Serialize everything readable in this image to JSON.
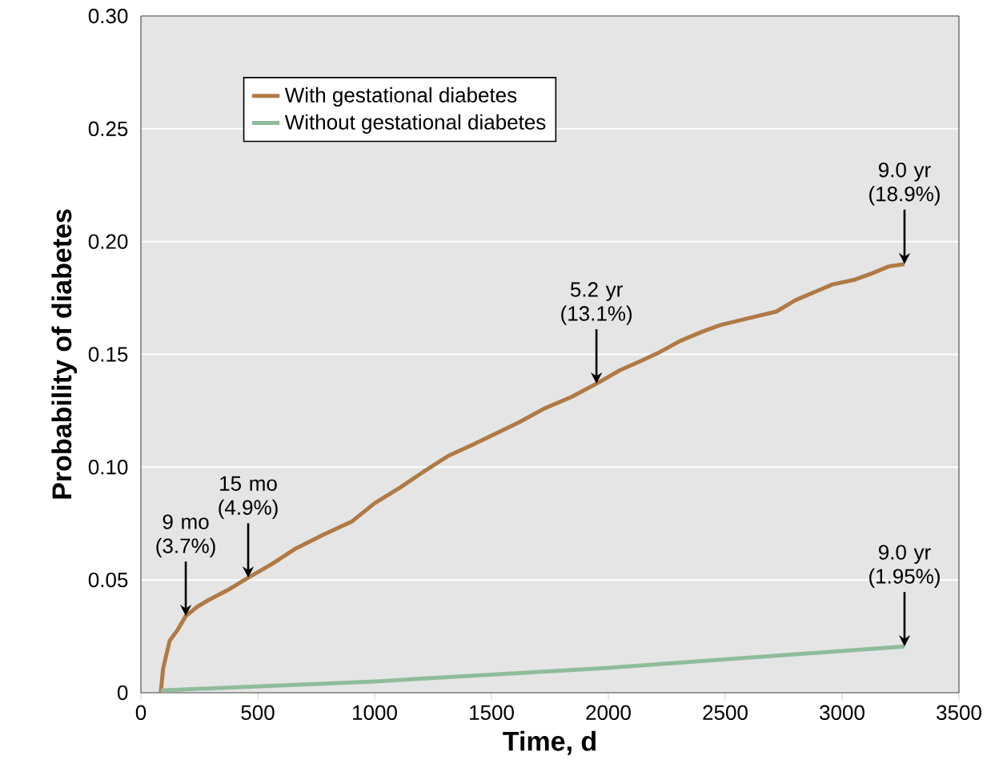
{
  "chart_data": {
    "type": "line",
    "xlabel": "Time, d",
    "ylabel": "Probability of diabetes",
    "xlim": [
      0,
      3500
    ],
    "ylim": [
      0,
      0.3
    ],
    "xticks": [
      0,
      500,
      1000,
      1500,
      2000,
      2500,
      3000,
      3500
    ],
    "yticks": [
      0,
      {
        "value": 0.05,
        "label": "0.05"
      },
      {
        "value": 0.1,
        "label": "0.10"
      },
      {
        "value": 0.15,
        "label": "0.15"
      },
      {
        "value": 0.2,
        "label": "0.20"
      },
      {
        "value": 0.25,
        "label": "0.25"
      },
      {
        "value": 0.3,
        "label": "0.30"
      }
    ],
    "grid": "y",
    "legend": "top left",
    "series": [
      {
        "name": "With gestational diabetes",
        "color": "#b07a45",
        "x": [
          85,
          95,
          123,
          158,
          192,
          240,
          288,
          380,
          459,
          560,
          664,
          780,
          904,
          1000,
          1110,
          1210,
          1315,
          1420,
          1521,
          1620,
          1726,
          1840,
          1949,
          2050,
          2137,
          2220,
          2308,
          2400,
          2479,
          2600,
          2719,
          2800,
          2959,
          3050,
          3130,
          3200,
          3267
        ],
        "values": [
          0,
          0.0107,
          0.023,
          0.028,
          0.034,
          0.038,
          0.041,
          0.046,
          0.051,
          0.057,
          0.064,
          0.07,
          0.076,
          0.084,
          0.091,
          0.098,
          0.105,
          0.11,
          0.115,
          0.12,
          0.126,
          0.131,
          0.137,
          0.143,
          0.147,
          0.151,
          0.156,
          0.16,
          0.163,
          0.166,
          0.169,
          0.174,
          0.181,
          0.183,
          0.186,
          0.189,
          0.19
        ]
      },
      {
        "name": "Without gestational diabetes",
        "color": "#8fbc9a",
        "x": [
          85,
          1000,
          2000,
          3267
        ],
        "values": [
          0.001,
          0.005,
          0.011,
          0.0205
        ]
      }
    ],
    "annotations": [
      {
        "text": "9 mo (3.7%)",
        "x": 192,
        "y": 0.034
      },
      {
        "text": "15 mo (4.9%)",
        "x": 459,
        "y": 0.051
      },
      {
        "text": "5.2 yr (13.1%)",
        "x": 1949,
        "y": 0.137
      },
      {
        "text": "9.0 yr (18.9%)",
        "x": 3267,
        "y": 0.19
      },
      {
        "text": "9.0 yr (1.95%)",
        "x": 3267,
        "y": 0.0205
      }
    ]
  }
}
